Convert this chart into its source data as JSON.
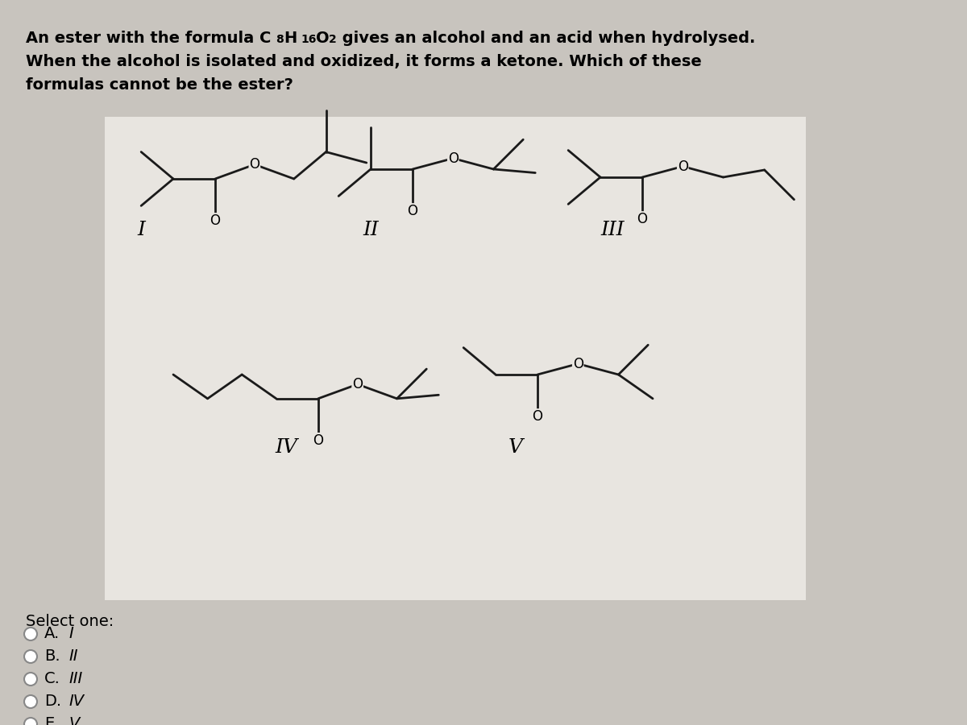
{
  "background_color": "#c8c4be",
  "panel_color": "#e8e5e0",
  "line1": "An ester with the formula C",
  "line1_sub": "8",
  "line1_mid": "H",
  "line1_sub2": "16",
  "line1_end": "O",
  "line1_sub3": "2",
  "line1_tail": " gives an alcohol and an acid when hydrolysed.",
  "line2": "When the alcohol is isolated and oxidized, it forms a ketone. Which of these",
  "line3": "formulas cannot be the ester?",
  "select_one": "Select one:",
  "options": [
    "A. I",
    "B. II",
    "C. III",
    "D. IV",
    "E. V"
  ],
  "lw": 2.0,
  "bond_color": "#1a1a1a"
}
